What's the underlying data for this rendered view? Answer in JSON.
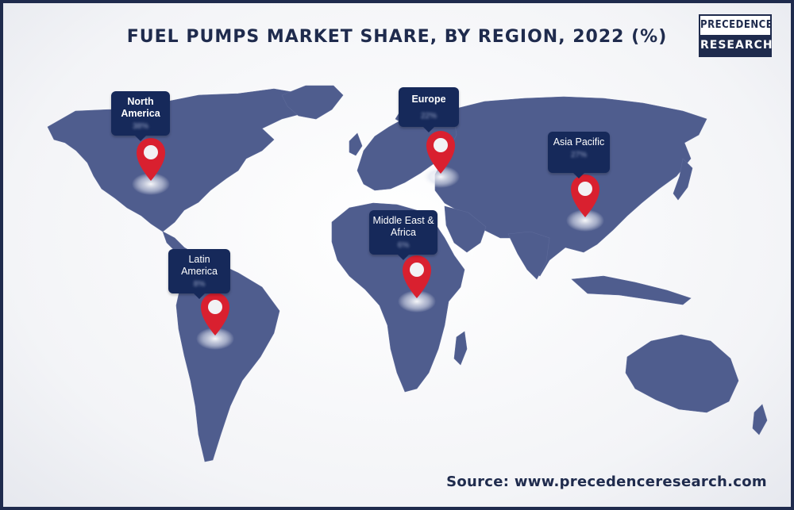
{
  "title": "FUEL PUMPS MARKET SHARE, BY REGION, 2022 (%)",
  "logo": {
    "line1": "PRECEDENCE",
    "line2": "RESEARCH"
  },
  "source": "Source: www.precedenceresearch.com",
  "colors": {
    "land": "#4f5d8e",
    "callout": "#16295a",
    "pin": "#d9202f",
    "brand": "#1f2b4d"
  },
  "regions": [
    {
      "name": "North America",
      "value": "38%"
    },
    {
      "name": "Europe",
      "value": "22%"
    },
    {
      "name": "Asia Pacific",
      "value": "27%"
    },
    {
      "name": "Middle East & Africa",
      "value": "6%"
    },
    {
      "name": "Latin America",
      "value": "8%"
    }
  ]
}
